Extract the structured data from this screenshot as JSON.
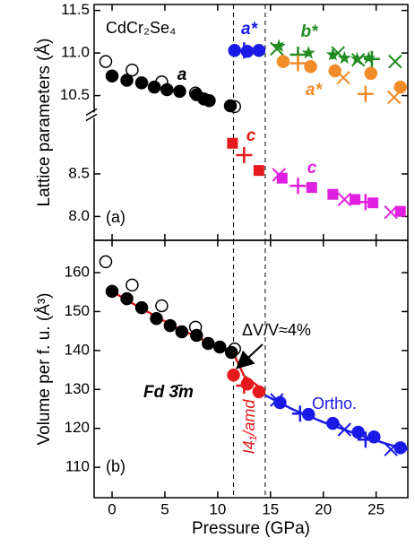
{
  "chart_data": [
    {
      "type": "scatter",
      "ylabel": "Lattice parameters (Å)",
      "xlim": [
        -1.7,
        28.0
      ],
      "xticks": [
        0,
        5,
        10,
        15,
        20,
        25
      ],
      "ylim": [
        7.72,
        11.57
      ],
      "ybreak": [
        9.19,
        10.27
      ],
      "yticks": [
        {
          "value": 8,
          "label": "8.0"
        },
        8.5,
        10.5,
        {
          "value": 11,
          "label": "11.0"
        },
        11.5
      ],
      "vlines": [
        11.5,
        14.5
      ],
      "annotations": [
        "CdCr₂Se₄",
        "a",
        "a*",
        "b*",
        "a*",
        "c",
        "c",
        "(a)"
      ],
      "annotation_colors": [
        "#000000",
        "#000000",
        "#1a1ae6",
        "#228b22",
        "#f28c28",
        "#e41a1c",
        "#e020e0",
        "#000000"
      ],
      "series": [
        {
          "color": "#000000",
          "marker": "open-circle",
          "x": [
            -0.6,
            1.9,
            4.7,
            7.9,
            11.6
          ],
          "values": [
            10.9,
            10.8,
            10.66,
            10.53,
            10.37
          ]
        },
        {
          "color": "#000000",
          "marker": "circle",
          "x": [
            0,
            1.4,
            2.8,
            4,
            5.2,
            6.4,
            8,
            8.7,
            9.2,
            11.2
          ],
          "values": [
            10.73,
            10.68,
            10.65,
            10.6,
            10.57,
            10.55,
            10.51,
            10.46,
            10.44,
            10.38
          ]
        },
        {
          "color": "#1a1ae6",
          "marker": "circle",
          "x": [
            11.6,
            12.8,
            13.9
          ],
          "values": [
            11.03,
            11.02,
            11.03
          ]
        },
        {
          "color": "#1a1ae6",
          "marker": "plus",
          "x": [
            12.5
          ],
          "values": [
            11.03
          ]
        },
        {
          "color": "#228b22",
          "marker": "star",
          "x": [
            15.8,
            18.6,
            20.9,
            22,
            23.2,
            24.3
          ],
          "values": [
            11.08,
            11.0,
            10.98,
            10.94,
            10.93,
            10.94
          ]
        },
        {
          "color": "#228b22",
          "marker": "x",
          "x": [
            15.6,
            21.4,
            23.3,
            26.8
          ],
          "values": [
            11.05,
            11.0,
            10.92,
            10.9
          ]
        },
        {
          "color": "#228b22",
          "marker": "plus",
          "x": [
            17.6,
            24.6
          ],
          "values": [
            10.98,
            10.93
          ]
        },
        {
          "color": "#f28c28",
          "marker": "circle",
          "x": [
            16.2,
            18.8,
            21.1,
            24.5,
            27.3
          ],
          "values": [
            10.9,
            10.84,
            10.79,
            10.76,
            10.6
          ]
        },
        {
          "color": "#f28c28",
          "marker": "x",
          "x": [
            21.9,
            26.7
          ],
          "values": [
            10.71,
            10.48
          ]
        },
        {
          "color": "#f28c28",
          "marker": "plus",
          "x": [
            17.6,
            24
          ],
          "values": [
            10.88,
            10.52
          ]
        },
        {
          "color": "#e41a1c",
          "marker": "square",
          "x": [
            11.4,
            13.9
          ],
          "values": [
            8.86,
            8.54
          ]
        },
        {
          "color": "#e41a1c",
          "marker": "plus",
          "x": [
            12.5
          ],
          "values": [
            8.72
          ]
        },
        {
          "color": "#e020e0",
          "marker": "square",
          "x": [
            16.1,
            18.9,
            20.9,
            23,
            24.7,
            27.3
          ],
          "values": [
            8.45,
            8.34,
            8.26,
            8.2,
            8.16,
            8.06
          ]
        },
        {
          "color": "#e020e0",
          "marker": "x",
          "x": [
            15.8,
            22,
            26.4
          ],
          "values": [
            8.49,
            8.2,
            8.05
          ]
        },
        {
          "color": "#e020e0",
          "marker": "plus",
          "x": [
            17.6,
            24
          ],
          "values": [
            8.36,
            8.17
          ]
        }
      ]
    },
    {
      "type": "scatter",
      "ylabel": "Volume per f. u. (Å³)",
      "xlabel": "Pressure (GPa)",
      "xlim": [
        -1.7,
        28.0
      ],
      "xticks": [
        0,
        5,
        10,
        15,
        20,
        25
      ],
      "ylim": [
        102.2,
        168.3
      ],
      "yticks": [
        110,
        120,
        130,
        140,
        150,
        160
      ],
      "vlines": [
        11.5,
        14.5
      ],
      "annotations": [
        "(b)",
        "Fd 3̄m",
        "I4₁/amd",
        "Ortho.",
        "ΔV/V≈4%"
      ],
      "annotation_colors": [
        "#000000",
        "#000000",
        "#e41a1c",
        "#1a1ae6",
        "#000000"
      ],
      "fits": [
        {
          "color": "#e41a1c",
          "x": [
            0,
            2,
            4,
            6,
            8,
            10,
            11.5,
            12.5,
            14.5
          ],
          "values": [
            155.2,
            152,
            149,
            146,
            143.5,
            141,
            139.2,
            133.5,
            129.5
          ]
        },
        {
          "color": "#1a1ae6",
          "x": [
            14.5,
            17,
            20,
            23,
            26,
            28
          ],
          "values": [
            128.5,
            125,
            121.6,
            118.7,
            116,
            114.5
          ]
        }
      ],
      "series": [
        {
          "color": "#000000",
          "marker": "open-circle",
          "x": [
            -0.6,
            1.9,
            4.7,
            7.9,
            11.6
          ],
          "values": [
            162.8,
            156.8,
            151.5,
            146,
            140.4
          ]
        },
        {
          "color": "#000000",
          "marker": "circle",
          "x": [
            0,
            1.4,
            2.8,
            4.2,
            5.5,
            6.6,
            8,
            9.1,
            10.2,
            11.3
          ],
          "values": [
            155.2,
            153.3,
            151,
            148.2,
            146.4,
            144.8,
            143.9,
            141.8,
            140.9,
            139.5
          ]
        },
        {
          "color": "#e41a1c",
          "marker": "circle",
          "x": [
            11.5,
            12.8,
            13.9
          ],
          "values": [
            133.7,
            131.4,
            129.4
          ]
        },
        {
          "color": "#e41a1c",
          "marker": "plus",
          "x": [
            12.5
          ],
          "values": [
            131
          ]
        },
        {
          "color": "#1a1ae6",
          "marker": "circle",
          "x": [
            15.9,
            18.6,
            20.9,
            23.3,
            24.8,
            27.3
          ],
          "values": [
            126.6,
            123.6,
            121.3,
            119,
            117.8,
            115
          ]
        },
        {
          "color": "#1a1ae6",
          "marker": "x",
          "x": [
            15.6,
            22,
            26.4
          ],
          "values": [
            127.3,
            119.7,
            114.6
          ]
        },
        {
          "color": "#1a1ae6",
          "marker": "plus",
          "x": [
            17.8,
            24
          ],
          "values": [
            123.8,
            117.1
          ]
        }
      ]
    }
  ]
}
